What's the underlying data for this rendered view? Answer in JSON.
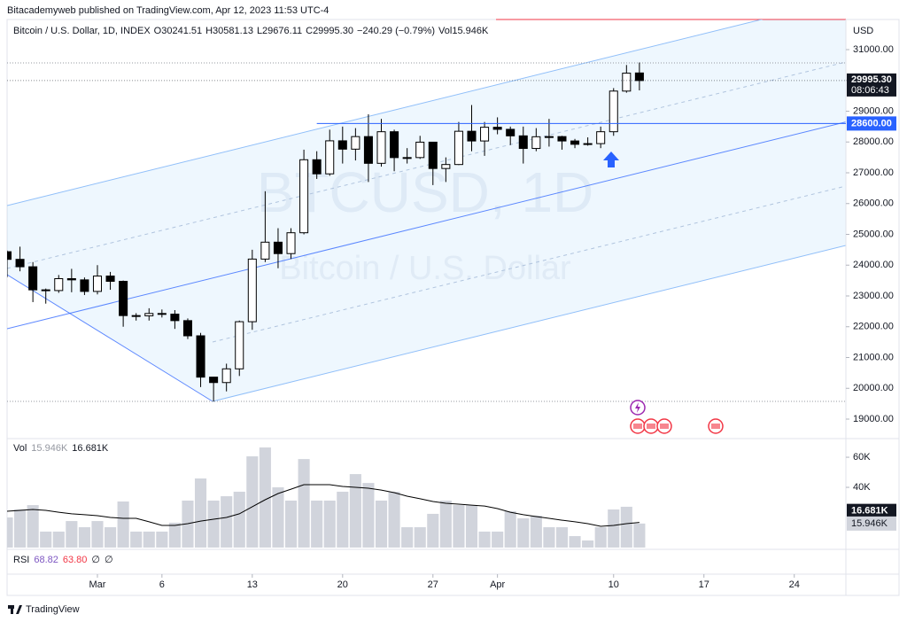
{
  "published": "Bitacademyweb published on TradingView.com, Apr 12, 2023 11:53 UTC-4",
  "footer": "TradingView",
  "chart_data": {
    "type": "candlestick",
    "symbol": "Bitcoin / U.S. Dollar, 1D, INDEX",
    "ohlc_labels": [
      "O30241.51",
      "H30581.13",
      "L29676.11",
      "C29995.30"
    ],
    "change_label": "−240.29 (−0.79%)",
    "volume_header": "Vol15.946K",
    "watermark": [
      "BTCUSD, 1D",
      "Bitcoin / U.S. Dollar"
    ],
    "currency": "USD",
    "up_color": "#ffffff",
    "down_color": "#000000",
    "x": [
      "Feb 22",
      "Feb 23",
      "Feb 24",
      "Feb 25",
      "Feb 26",
      "Feb 27",
      "Feb 28",
      "Mar 1",
      "Mar 2",
      "Mar 3",
      "Mar 4",
      "Mar 5",
      "Mar 6",
      "Mar 7",
      "Mar 8",
      "Mar 9",
      "Mar 10",
      "Mar 11",
      "Mar 12",
      "Mar 13",
      "Mar 14",
      "Mar 15",
      "Mar 16",
      "Mar 17",
      "Mar 18",
      "Mar 19",
      "Mar 20",
      "Mar 21",
      "Mar 22",
      "Mar 23",
      "Mar 24",
      "Mar 25",
      "Mar 26",
      "Mar 27",
      "Mar 28",
      "Mar 29",
      "Mar 30",
      "Mar 31",
      "Apr 1",
      "Apr 2",
      "Apr 3",
      "Apr 4",
      "Apr 5",
      "Apr 6",
      "Apr 7",
      "Apr 8",
      "Apr 9",
      "Apr 10",
      "Apr 11",
      "Apr 12"
    ],
    "open": [
      24436,
      24188,
      23947,
      23198,
      23175,
      23561,
      23522,
      23147,
      23646,
      23475,
      22362,
      22354,
      22430,
      22410,
      22198,
      21705,
      20363,
      20187,
      20632,
      22163,
      24197,
      24746,
      24375,
      25052,
      27423,
      26965,
      28038,
      27767,
      28175,
      27307,
      28333,
      27493,
      27494,
      27994,
      27139,
      27268,
      28348,
      28033,
      28478,
      28411,
      28199,
      27790,
      28170,
      28175,
      28033,
      27925,
      27947,
      28333,
      29653,
      30241.51
    ],
    "high": [
      24476,
      24600,
      24100,
      23240,
      23680,
      23880,
      23600,
      24000,
      23780,
      23500,
      22440,
      22600,
      22560,
      22540,
      22270,
      21800,
      20370,
      20800,
      22200,
      24500,
      26400,
      25200,
      25200,
      27750,
      27700,
      28400,
      28500,
      28450,
      28900,
      28750,
      28400,
      27800,
      28200,
      28000,
      27500,
      28650,
      29200,
      28650,
      28800,
      28500,
      28500,
      28450,
      28750,
      28200,
      28100,
      28150,
      28500,
      29750,
      30500,
      30581.13
    ],
    "low": [
      23608,
      23800,
      22800,
      22750,
      23100,
      23120,
      23030,
      23050,
      23200,
      22000,
      22200,
      22200,
      22300,
      21930,
      21600,
      20040,
      19570,
      19900,
      20400,
      21900,
      24100,
      23900,
      24200,
      25000,
      26800,
      26900,
      27300,
      27400,
      26700,
      27200,
      27050,
      27300,
      27450,
      26600,
      26700,
      27250,
      27700,
      27550,
      28250,
      27900,
      27300,
      27700,
      27850,
      27750,
      27800,
      27880,
      27800,
      28200,
      29600,
      29676.11
    ],
    "close": [
      24188,
      23947,
      23198,
      23175,
      23561,
      23522,
      23147,
      23646,
      23475,
      22362,
      22354,
      22430,
      22410,
      22198,
      21705,
      20363,
      20187,
      20632,
      22163,
      24197,
      24746,
      24375,
      25052,
      27423,
      26965,
      28038,
      27767,
      28175,
      27307,
      28333,
      27493,
      27494,
      27994,
      27139,
      27268,
      28348,
      28033,
      28478,
      28411,
      28199,
      27790,
      28170,
      28175,
      28033,
      27925,
      27947,
      28333,
      29653,
      30235,
      29995.3
    ],
    "xlim": [
      "Feb 22",
      "Apr 28"
    ],
    "xticks": [
      {
        "value": "Mar 1",
        "label": "Mar"
      },
      {
        "value": "Mar 6",
        "label": "6"
      },
      {
        "value": "Mar 13",
        "label": "13"
      },
      {
        "value": "Mar 20",
        "label": "20"
      },
      {
        "value": "Mar 27",
        "label": "27"
      },
      {
        "value": "Apr 1",
        "label": "Apr"
      },
      {
        "value": "Apr 10",
        "label": "10"
      },
      {
        "value": "Apr 17",
        "label": "17"
      },
      {
        "value": "Apr 24",
        "label": "24"
      }
    ],
    "ylim": [
      18367,
      31978
    ],
    "yticks": [
      {
        "value": 31000,
        "label": "31000.00"
      },
      {
        "value": 30000,
        "label": "30000.00"
      },
      {
        "value": 29000,
        "label": "29000.00"
      },
      {
        "value": 28000,
        "label": "28000.00"
      },
      {
        "value": 27000,
        "label": "27000.00"
      },
      {
        "value": 26000,
        "label": "26000.00"
      },
      {
        "value": 25000,
        "label": "25000.00"
      },
      {
        "value": 24000,
        "label": "24000.00"
      },
      {
        "value": 23000,
        "label": "23000.00"
      },
      {
        "value": 22000,
        "label": "22000.00"
      },
      {
        "value": 21000,
        "label": "21000.00"
      },
      {
        "value": 20000,
        "label": "20000.00"
      },
      {
        "value": 19000,
        "label": "19000.00"
      }
    ],
    "last_price": {
      "value": 29995.3,
      "label": "29995.30",
      "countdown": "08:06:43"
    },
    "level": {
      "value": 28600,
      "label": "28600.00",
      "color": "#2962ff"
    },
    "volume": {
      "label": "Vol",
      "color": "#d1d4dc",
      "ma_color": "#000000",
      "last_label": "15.946K",
      "ma_last_label": "16.681K",
      "values": [
        20000,
        25300,
        28200,
        10600,
        10600,
        17600,
        13500,
        17600,
        13500,
        30600,
        10600,
        10600,
        10600,
        16500,
        31200,
        45900,
        31200,
        34100,
        37100,
        60600,
        66500,
        40000,
        31200,
        58800,
        31200,
        31200,
        37100,
        48800,
        42900,
        31200,
        37100,
        13500,
        13500,
        22400,
        31200,
        28200,
        28200,
        10600,
        10600,
        24100,
        19400,
        21200,
        13500,
        13500,
        7600,
        4700,
        13500,
        25300,
        27100,
        15946
      ],
      "ma_values": [
        24100,
        24700,
        25300,
        24700,
        23500,
        22400,
        21800,
        21200,
        20000,
        19400,
        19400,
        17100,
        14700,
        14700,
        15900,
        17600,
        18800,
        20000,
        22400,
        27100,
        31800,
        35900,
        38800,
        41800,
        41800,
        41800,
        40600,
        40000,
        39400,
        38200,
        36500,
        34100,
        32400,
        30600,
        29400,
        28800,
        28200,
        27600,
        25900,
        23500,
        21800,
        20600,
        19400,
        18200,
        17100,
        15900,
        14100,
        14700,
        15900,
        16681
      ],
      "ylim": [
        -1200,
        72400
      ],
      "yticks": [
        {
          "value": 60000,
          "label": "60K"
        },
        {
          "value": 40000,
          "label": "40K"
        }
      ]
    },
    "rsi": {
      "label": "RSI",
      "values": [
        "68.82",
        "63.80",
        "∅",
        "∅"
      ]
    }
  }
}
